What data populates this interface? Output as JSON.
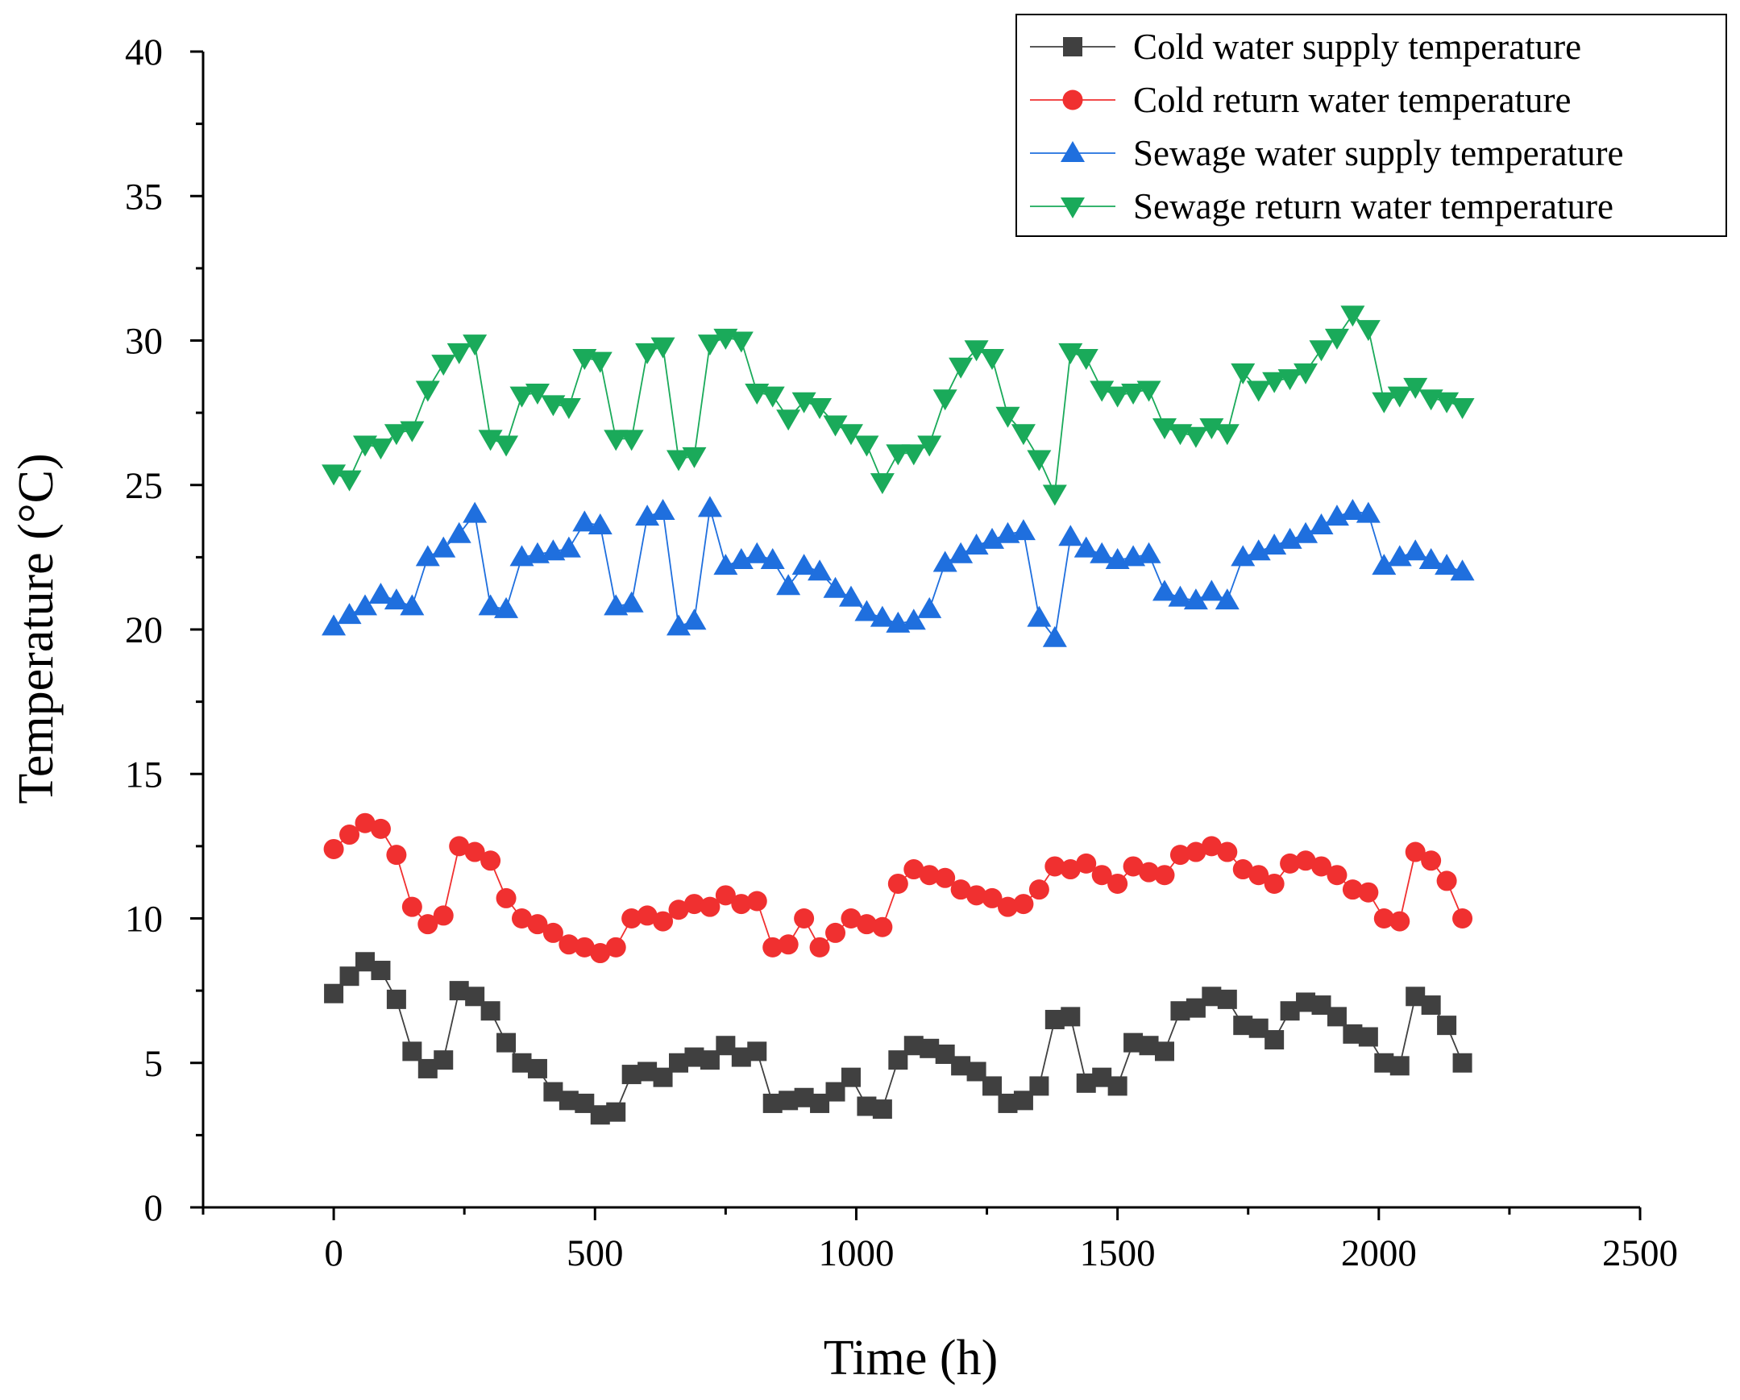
{
  "chart_data": {
    "type": "line",
    "title": "",
    "xlabel": "Time (h)",
    "ylabel": "Temperature (°C)",
    "xlim": [
      -250,
      2500
    ],
    "ylim": [
      0,
      40
    ],
    "x_ticks": [
      0,
      500,
      1000,
      1500,
      2000,
      2500
    ],
    "y_ticks": [
      0,
      5,
      10,
      15,
      20,
      25,
      30,
      35,
      40
    ],
    "grid": false,
    "legend_position": "top-right",
    "x": [
      0,
      30,
      60,
      90,
      120,
      150,
      180,
      210,
      240,
      270,
      300,
      330,
      360,
      390,
      420,
      450,
      480,
      510,
      540,
      570,
      600,
      630,
      660,
      690,
      720,
      750,
      780,
      810,
      840,
      870,
      900,
      930,
      960,
      990,
      1020,
      1050,
      1080,
      1110,
      1140,
      1170,
      1200,
      1230,
      1260,
      1290,
      1320,
      1350,
      1380,
      1410,
      1440,
      1470,
      1500,
      1530,
      1560,
      1590,
      1620,
      1650,
      1680,
      1710,
      1740,
      1770,
      1800,
      1830,
      1860,
      1890,
      1920,
      1950,
      1980,
      2010,
      2040,
      2070,
      2100,
      2130,
      2160
    ],
    "series": [
      {
        "name": "Cold water supply temperature",
        "color": "#404040",
        "marker": "square",
        "values": [
          7.4,
          8.0,
          8.5,
          8.2,
          7.2,
          5.4,
          4.8,
          5.1,
          7.5,
          7.3,
          6.8,
          5.7,
          5.0,
          4.8,
          4.0,
          3.7,
          3.6,
          3.2,
          3.3,
          4.6,
          4.7,
          4.5,
          5.0,
          5.2,
          5.1,
          5.6,
          5.2,
          5.4,
          3.6,
          3.7,
          3.8,
          3.6,
          4.0,
          4.5,
          3.5,
          3.4,
          5.1,
          5.6,
          5.5,
          5.3,
          4.9,
          4.7,
          4.2,
          3.6,
          3.7,
          4.2,
          6.5,
          6.6,
          4.3,
          4.5,
          4.2,
          5.7,
          5.6,
          5.4,
          6.8,
          6.9,
          7.3,
          7.2,
          6.3,
          6.2,
          5.8,
          6.8,
          7.1,
          7.0,
          6.6,
          6.0,
          5.9,
          5.0,
          4.9,
          7.3,
          7.0,
          6.3,
          5.0
        ]
      },
      {
        "name": "Cold return water temperature",
        "color": "#f03030",
        "marker": "circle",
        "values": [
          12.4,
          12.9,
          13.3,
          13.1,
          12.2,
          10.4,
          9.8,
          10.1,
          12.5,
          12.3,
          12.0,
          10.7,
          10.0,
          9.8,
          9.5,
          9.1,
          9.0,
          8.8,
          9.0,
          10.0,
          10.1,
          9.9,
          10.3,
          10.5,
          10.4,
          10.8,
          10.5,
          10.6,
          9.0,
          9.1,
          10.0,
          9.0,
          9.5,
          10.0,
          9.8,
          9.7,
          11.2,
          11.7,
          11.5,
          11.4,
          11.0,
          10.8,
          10.7,
          10.4,
          10.5,
          11.0,
          11.8,
          11.7,
          11.9,
          11.5,
          11.2,
          11.8,
          11.6,
          11.5,
          12.2,
          12.3,
          12.5,
          12.3,
          11.7,
          11.5,
          11.2,
          11.9,
          12.0,
          11.8,
          11.5,
          11.0,
          10.9,
          10.0,
          9.9,
          12.3,
          12.0,
          11.3,
          10.0
        ]
      },
      {
        "name": "Sewage water supply temperature",
        "color": "#1f6fde",
        "marker": "triangle-up",
        "values": [
          20.1,
          20.5,
          20.8,
          21.2,
          21.0,
          20.8,
          22.5,
          22.8,
          23.3,
          24.0,
          20.8,
          20.7,
          22.5,
          22.6,
          22.7,
          22.8,
          23.7,
          23.6,
          20.8,
          20.9,
          23.9,
          24.1,
          20.1,
          20.3,
          24.2,
          22.2,
          22.4,
          22.6,
          22.4,
          21.5,
          22.2,
          22.0,
          21.4,
          21.1,
          20.6,
          20.4,
          20.2,
          20.3,
          20.7,
          22.3,
          22.6,
          22.9,
          23.1,
          23.3,
          23.4,
          20.4,
          19.7,
          23.2,
          22.8,
          22.6,
          22.4,
          22.5,
          22.6,
          21.3,
          21.1,
          21.0,
          21.3,
          21.0,
          22.5,
          22.7,
          22.9,
          23.1,
          23.3,
          23.6,
          23.9,
          24.1,
          24.0,
          22.2,
          22.5,
          22.7,
          22.4,
          22.2,
          22.0
        ]
      },
      {
        "name": "Sewage return water temperature",
        "color": "#1aaa5a",
        "marker": "triangle-down",
        "values": [
          25.4,
          25.2,
          26.4,
          26.3,
          26.8,
          26.9,
          28.3,
          29.2,
          29.6,
          29.9,
          26.6,
          26.4,
          28.1,
          28.2,
          27.8,
          27.7,
          29.4,
          29.3,
          26.6,
          26.6,
          29.6,
          29.8,
          25.9,
          26.0,
          29.9,
          30.1,
          30.0,
          28.2,
          28.1,
          27.3,
          27.9,
          27.7,
          27.1,
          26.8,
          26.4,
          25.1,
          26.1,
          26.1,
          26.4,
          28.0,
          29.1,
          29.7,
          29.4,
          27.4,
          26.8,
          25.9,
          24.7,
          29.6,
          29.4,
          28.3,
          28.1,
          28.2,
          28.3,
          27.0,
          26.8,
          26.7,
          27.0,
          26.8,
          28.9,
          28.3,
          28.6,
          28.7,
          28.9,
          29.7,
          30.1,
          30.9,
          30.4,
          27.9,
          28.1,
          28.4,
          28.0,
          27.9,
          27.7
        ]
      }
    ]
  }
}
